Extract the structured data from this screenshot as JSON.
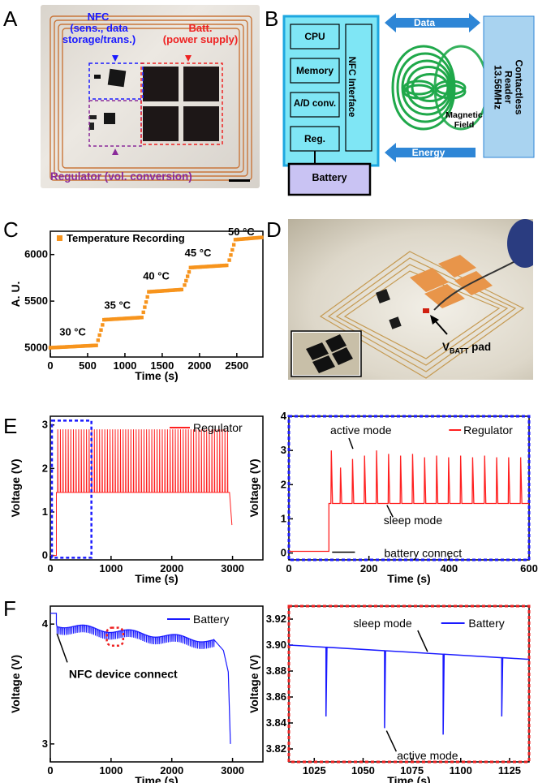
{
  "panels": {
    "A": "A",
    "B": "B",
    "C": "C",
    "D": "D",
    "E": "E",
    "F": "F"
  },
  "panelA": {
    "nfc_label": "NFC",
    "nfc_sub1": "(sens., data",
    "nfc_sub2": "storage/trans.)",
    "batt_label": "Batt.",
    "batt_sub": "(power supply)",
    "regulator_label": "Regulator (vol. conversion)"
  },
  "panelB": {
    "cpu": "CPU",
    "memory": "Memory",
    "adconv": "A/D conv.",
    "reg": "Reg.",
    "nfc_interface": "NFC Interface",
    "battery": "Battery",
    "data_arrow": "Data",
    "energy_arrow": "Energy",
    "magnetic_field": "Magnetic",
    "magnetic_field2": "Field",
    "reader_line1": "Contactless",
    "reader_line2": "Reader",
    "reader_line3": "13.56MHz",
    "colors": {
      "box_fill": "#7fe6f5",
      "box_border": "#1ea7e0",
      "battery_fill": "#c9c3f3",
      "reader_fill": "#a9d3f0",
      "arrow": "#2e86d6",
      "coil": "#1fa84a"
    }
  },
  "panelD": {
    "vbatt_main": "V",
    "vbatt_sub": "BATT",
    "vbatt_pad": " pad"
  },
  "chart_data": [
    {
      "id": "C",
      "type": "scatter",
      "legend": "Temperature Recording",
      "ylabel": "A. U.",
      "xlabel": "Time (s)",
      "xlim": [
        0,
        2850
      ],
      "ylim": [
        4900,
        6250
      ],
      "xticks": [
        "0",
        "500",
        "1000",
        "1500",
        "2000",
        "2500"
      ],
      "yticks": [
        "5000",
        "5500",
        "6000"
      ],
      "annotations": [
        "30 °C",
        "35 °C",
        "40 °C",
        "45 °C",
        "50 °C"
      ],
      "steps": [
        {
          "x0": 0,
          "x1": 620,
          "y": 5000
        },
        {
          "x0": 720,
          "x1": 1230,
          "y": 5300
        },
        {
          "x0": 1320,
          "x1": 1780,
          "y": 5600
        },
        {
          "x0": 1880,
          "x1": 2380,
          "y": 5860
        },
        {
          "x0": 2480,
          "x1": 2850,
          "y": 6160
        }
      ],
      "color": "#f7941d"
    },
    {
      "id": "E-left",
      "type": "line",
      "legend": "Regulator",
      "ylabel": "Voltage (V)",
      "xlabel": "Time (s)",
      "xlim": [
        0,
        3500
      ],
      "ylim": [
        -0.1,
        3.2
      ],
      "xticks": [
        "0",
        "1000",
        "2000",
        "3000"
      ],
      "yticks": [
        "0",
        "1",
        "2",
        "3"
      ],
      "start": 100,
      "end": 2950,
      "sleep": 1.45,
      "active": 2.9,
      "color": "#ff2020"
    },
    {
      "id": "E-right",
      "type": "line",
      "legend": "Regulator",
      "ylabel": "Voltage (V)",
      "xlabel": "Time (s)",
      "xlim": [
        0,
        600
      ],
      "ylim": [
        -0.2,
        4
      ],
      "xticks": [
        "0",
        "200",
        "400",
        "600"
      ],
      "yticks": [
        "0",
        "1",
        "2",
        "3",
        "4"
      ],
      "annotations": [
        "active mode",
        "sleep mode",
        "battery connect"
      ],
      "connect": 100,
      "sleep": 1.45,
      "peaks": [
        105,
        128,
        158,
        188,
        218,
        248,
        278,
        308,
        338,
        368,
        398,
        428,
        458,
        488,
        518,
        548,
        578
      ],
      "peak_values": [
        3.0,
        2.5,
        2.75,
        2.85,
        3.0,
        2.9,
        2.85,
        2.9,
        2.8,
        2.85,
        2.8,
        2.85,
        2.8,
        2.85,
        2.8,
        2.8,
        2.8
      ],
      "color": "#ff2020"
    },
    {
      "id": "F-left",
      "type": "line",
      "legend": "Battery",
      "ylabel": "Voltage (V)",
      "xlabel": "Time (s)",
      "xlim": [
        0,
        3500
      ],
      "ylim": [
        2.85,
        4.15
      ],
      "xticks": [
        "0",
        "1000",
        "2000",
        "3000"
      ],
      "yticks": [
        "3",
        "4"
      ],
      "annotations": [
        "NFC device connect"
      ],
      "color": "#1a1aff"
    },
    {
      "id": "F-right",
      "type": "line",
      "legend": "Battery",
      "ylabel": "Voltage (V)",
      "xlabel": "Time (s)",
      "xlim": [
        1012,
        1135
      ],
      "ylim": [
        3.81,
        3.93
      ],
      "xticks": [
        "1025",
        "1050",
        "1075",
        "1100",
        "1125"
      ],
      "yticks": [
        "3.82",
        "3.84",
        "3.86",
        "3.88",
        "3.90",
        "3.92"
      ],
      "annotations": [
        "sleep mode",
        "active mode"
      ],
      "baseline_start": 3.9,
      "baseline_end": 3.889,
      "dips": [
        {
          "x": 1031,
          "y": 3.845
        },
        {
          "x": 1061,
          "y": 3.836
        },
        {
          "x": 1091,
          "y": 3.831
        },
        {
          "x": 1121,
          "y": 3.845
        }
      ],
      "color": "#1a1aff"
    }
  ]
}
